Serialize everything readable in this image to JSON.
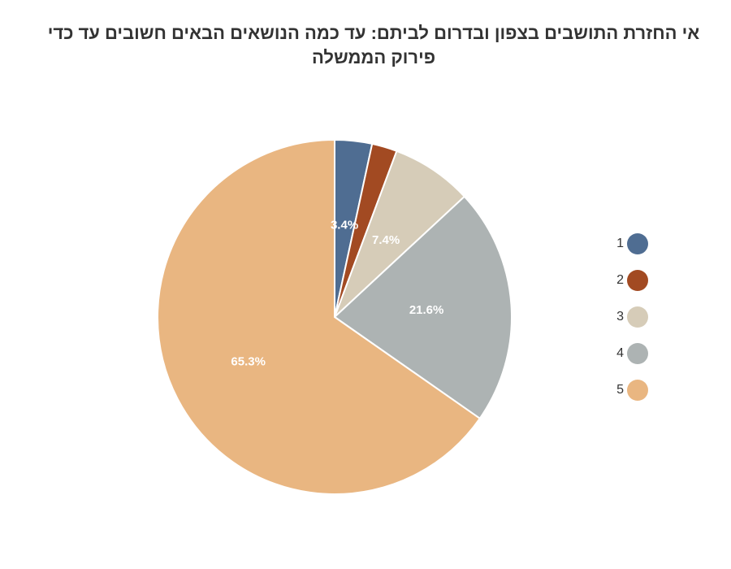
{
  "chart_data": {
    "type": "pie",
    "title": "אי החזרת התושבים בצפון ובדרום לביתם: עד כמה הנושאים הבאים חשובים עד כדי פירוק הממשלה",
    "categories": [
      "1",
      "2",
      "3",
      "4",
      "5"
    ],
    "values": [
      3.4,
      2.3,
      7.4,
      21.6,
      65.3
    ],
    "data_labels": [
      "3.4%",
      "",
      "7.4%",
      "21.6%",
      "65.3%"
    ],
    "colors": [
      "#4f6d92",
      "#a24a22",
      "#d6ccb8",
      "#adb3b3",
      "#e9b681"
    ],
    "legend": {
      "position": "right",
      "items": [
        {
          "label": "1",
          "color": "#4f6d92"
        },
        {
          "label": "2",
          "color": "#a24a22"
        },
        {
          "label": "3",
          "color": "#d6ccb8"
        },
        {
          "label": "4",
          "color": "#adb3b3"
        },
        {
          "label": "5",
          "color": "#e9b681"
        }
      ]
    }
  }
}
